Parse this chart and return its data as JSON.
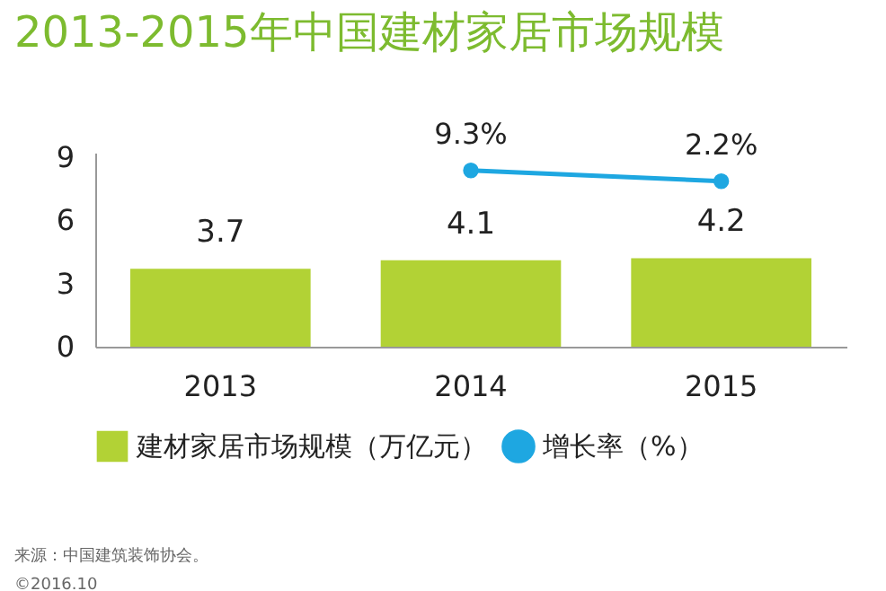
{
  "chart_data": {
    "type": "bar",
    "title": "2013-2015年中国建材家居市场规模",
    "categories": [
      "2013",
      "2014",
      "2015"
    ],
    "series": [
      {
        "name": "建材家居市场规模（万亿元）",
        "color": "#b2d235",
        "values": [
          3.7,
          4.1,
          4.2
        ],
        "value_labels": [
          "3.7",
          "4.1",
          "4.2"
        ]
      },
      {
        "name": "增长率（%）",
        "type": "line",
        "axis": "y2",
        "color": "#1ea7e1",
        "marker": "circle",
        "values": [
          null,
          9.3,
          2.2
        ],
        "value_labels": [
          null,
          "9.3%",
          "2.2%"
        ]
      }
    ],
    "ylim": [
      0,
      9.2
    ],
    "yticks": [
      0,
      3,
      6,
      9
    ],
    "y2lim": [
      -107,
      21
    ],
    "tick_labels": "xy",
    "grid": false,
    "legend": "bottom",
    "annotations": [
      "来源：中国建筑装饰协会。",
      "©2016.10"
    ]
  }
}
